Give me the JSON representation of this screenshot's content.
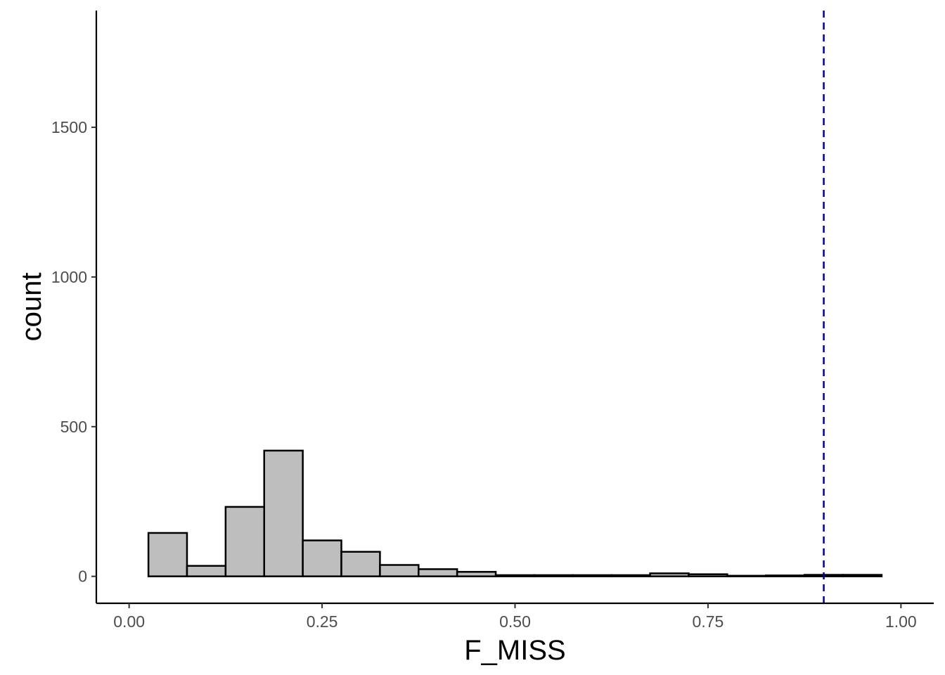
{
  "chart_data": {
    "type": "histogram",
    "title": "",
    "xlabel": "F_MISS",
    "ylabel": "count",
    "xlim": [
      -0.0425,
      1.0425
    ],
    "ylim": [
      -90,
      1890
    ],
    "x_ticks": [
      0,
      0.25,
      0.5,
      0.75,
      1
    ],
    "x_tick_labels": [
      "0.00",
      "0.25",
      "0.50",
      "0.75",
      "1.00"
    ],
    "y_ticks": [
      0,
      500,
      1000,
      1500
    ],
    "y_tick_labels": [
      "0",
      "500",
      "1000",
      "1500"
    ],
    "bin_width": 0.05,
    "bins": [
      {
        "x0": 0.025,
        "x1": 0.075,
        "count": 145
      },
      {
        "x0": 0.075,
        "x1": 0.125,
        "count": 35
      },
      {
        "x0": 0.125,
        "x1": 0.175,
        "count": 232
      },
      {
        "x0": 0.175,
        "x1": 0.225,
        "count": 420
      },
      {
        "x0": 0.225,
        "x1": 0.275,
        "count": 120
      },
      {
        "x0": 0.275,
        "x1": 0.325,
        "count": 82
      },
      {
        "x0": 0.325,
        "x1": 0.375,
        "count": 38
      },
      {
        "x0": 0.375,
        "x1": 0.425,
        "count": 24
      },
      {
        "x0": 0.425,
        "x1": 0.475,
        "count": 15
      },
      {
        "x0": 0.475,
        "x1": 0.525,
        "count": 4
      },
      {
        "x0": 0.525,
        "x1": 0.575,
        "count": 4
      },
      {
        "x0": 0.575,
        "x1": 0.625,
        "count": 4
      },
      {
        "x0": 0.625,
        "x1": 0.675,
        "count": 4
      },
      {
        "x0": 0.675,
        "x1": 0.725,
        "count": 10
      },
      {
        "x0": 0.725,
        "x1": 0.775,
        "count": 7
      },
      {
        "x0": 0.775,
        "x1": 0.825,
        "count": 2
      },
      {
        "x0": 0.825,
        "x1": 0.875,
        "count": 3
      },
      {
        "x0": 0.875,
        "x1": 0.925,
        "count": 5
      },
      {
        "x0": 0.925,
        "x1": 0.975,
        "count": 5
      }
    ],
    "vline": {
      "x": 0.9,
      "style": "dashed",
      "color": "#00008b"
    },
    "grid": false,
    "colors": {
      "bar_fill": "#bebebe",
      "bar_stroke": "#000000"
    }
  }
}
